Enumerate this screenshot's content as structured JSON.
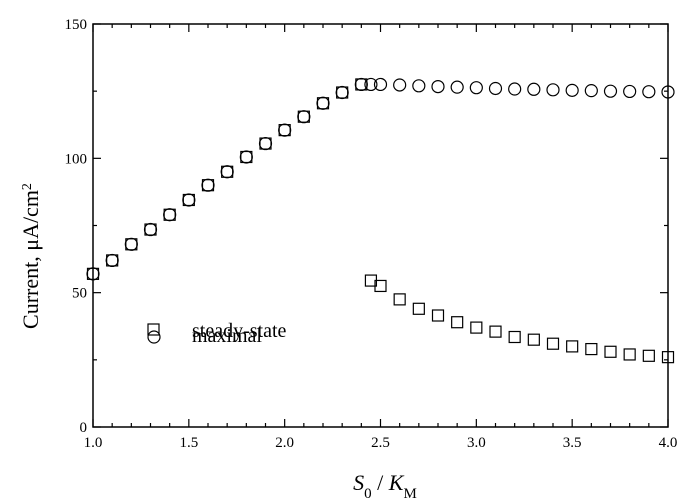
{
  "chart_data": {
    "type": "scatter",
    "xlim": [
      1.0,
      4.0
    ],
    "ylim": [
      0,
      150
    ],
    "x_ticks": [
      "1.0",
      "1.5",
      "2.0",
      "2.5",
      "3.0",
      "3.5",
      "4.0"
    ],
    "y_ticks": [
      "0",
      "50",
      "100",
      "150"
    ],
    "ylabel": "Current, μA/cm",
    "ylabel_sup": "2",
    "xlabel_parts": {
      "s": "S",
      "s_sub": "0",
      "sep": " / ",
      "k": "K",
      "k_sub": "M"
    },
    "grid": false,
    "legend_position": "lower-left",
    "series": [
      {
        "name": "steady-state",
        "marker": "square",
        "x": [
          1.0,
          1.1,
          1.2,
          1.3,
          1.4,
          1.5,
          1.6,
          1.7,
          1.8,
          1.9,
          2.0,
          2.1,
          2.2,
          2.3,
          2.4,
          2.45,
          2.5,
          2.6,
          2.7,
          2.8,
          2.9,
          3.0,
          3.1,
          3.2,
          3.3,
          3.4,
          3.5,
          3.6,
          3.7,
          3.8,
          3.9,
          4.0
        ],
        "y": [
          57,
          62,
          68,
          73.5,
          79,
          84.5,
          90,
          95,
          100.5,
          105.5,
          110.5,
          115.5,
          120.5,
          124.5,
          127.5,
          54.5,
          52.5,
          47.5,
          44,
          41.5,
          39,
          37,
          35.5,
          33.5,
          32.5,
          31,
          30,
          29,
          28,
          27,
          26.5,
          26
        ]
      },
      {
        "name": "maximal",
        "marker": "circle",
        "x": [
          1.0,
          1.1,
          1.2,
          1.3,
          1.4,
          1.5,
          1.6,
          1.7,
          1.8,
          1.9,
          2.0,
          2.1,
          2.2,
          2.3,
          2.4,
          2.45,
          2.5,
          2.6,
          2.7,
          2.8,
          2.9,
          3.0,
          3.1,
          3.2,
          3.3,
          3.4,
          3.5,
          3.6,
          3.7,
          3.8,
          3.9,
          4.0
        ],
        "y": [
          57,
          62,
          68,
          73.5,
          79,
          84.5,
          90,
          95,
          100.5,
          105.5,
          110.5,
          115.5,
          120.5,
          124.5,
          127.5,
          127.5,
          127.5,
          127.3,
          127,
          126.7,
          126.5,
          126.3,
          126,
          125.8,
          125.7,
          125.5,
          125.3,
          125.2,
          125,
          124.9,
          124.8,
          124.7
        ]
      }
    ]
  }
}
